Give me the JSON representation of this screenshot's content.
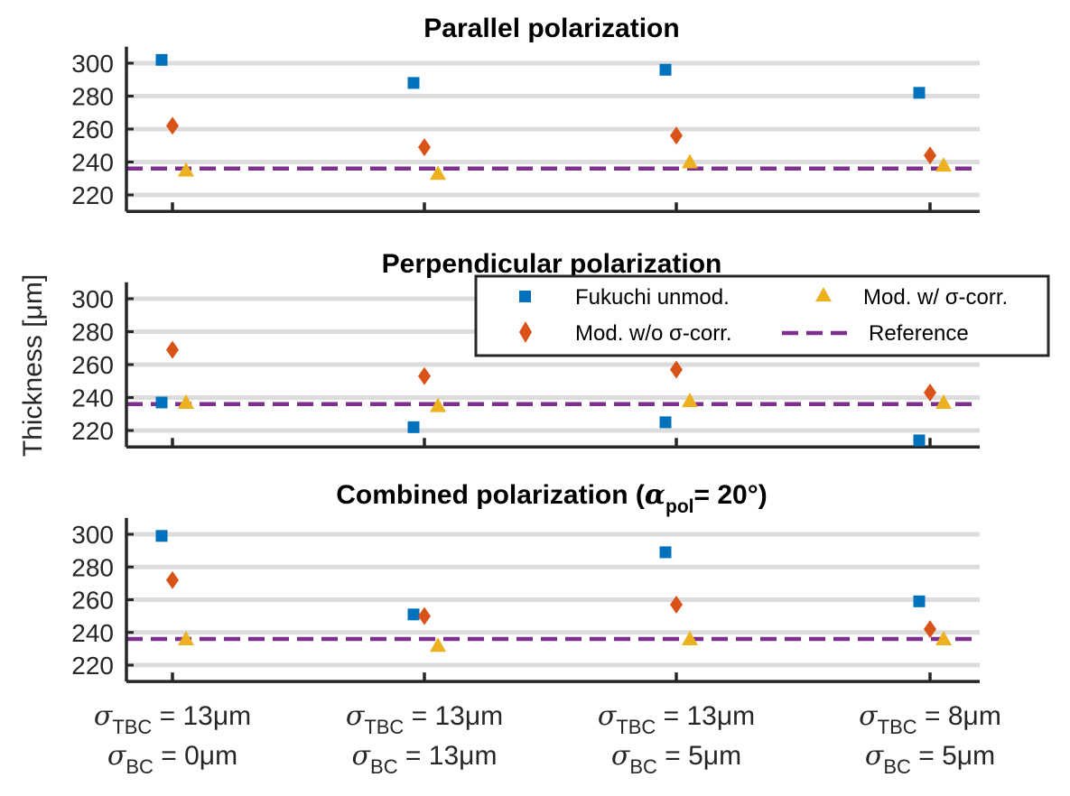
{
  "chart_data": {
    "type": "scatter",
    "ylabel": "Thickness [μm]",
    "ylim": [
      210,
      310
    ],
    "yticks": [
      "220",
      "240",
      "260",
      "280",
      "300"
    ],
    "grid": "horizontal",
    "categories": [
      {
        "tbc": "= 13μm",
        "bc": "=   0μm"
      },
      {
        "tbc": "= 13μm",
        "bc": "= 13μm"
      },
      {
        "tbc": "= 13μm",
        "bc": "=   5μm"
      },
      {
        "tbc": "=  8μm",
        "bc": "=  5μm"
      }
    ],
    "sigma_symbol": "σ",
    "tbc_subscript": "TBC",
    "bc_subscript": "BC",
    "reference_value": 236,
    "legend": {
      "placement": "inside top-right of middle panel",
      "entries": [
        {
          "name": "Fukuchi unmod.",
          "color": "#0072BD",
          "marker": "square"
        },
        {
          "name": "Mod. w/o σ-corr.",
          "color": "#D95319",
          "marker": "diamond"
        },
        {
          "name": "Mod. w/ σ-corr.",
          "color": "#EDB120",
          "marker": "triangle"
        },
        {
          "name": "Reference",
          "color": "#7E2F8E",
          "marker": "dashed-line"
        }
      ]
    },
    "panels": [
      {
        "title": "Parallel polarization",
        "series": [
          {
            "name": "Fukuchi unmod.",
            "values": [
              302,
              288,
              296,
              282
            ]
          },
          {
            "name": "Mod. w/o σ-corr.",
            "values": [
              262,
              249,
              256,
              244
            ]
          },
          {
            "name": "Mod. w/ σ-corr.",
            "values": [
              235,
              233,
              240,
              238
            ]
          }
        ]
      },
      {
        "title": "Perpendicular polarization",
        "series": [
          {
            "name": "Fukuchi unmod.",
            "values": [
              237,
              222,
              225,
              214
            ]
          },
          {
            "name": "Mod. w/o σ-corr.",
            "values": [
              269,
              253,
              257,
              243
            ]
          },
          {
            "name": "Mod. w/ σ-corr.",
            "values": [
              237,
              235,
              238,
              237
            ]
          }
        ]
      },
      {
        "title_prefix": "Combined polarization (",
        "title_alpha": "α",
        "title_sub": "pol",
        "title_suffix": "= 20°)",
        "series": [
          {
            "name": "Fukuchi unmod.",
            "values": [
              299,
              251,
              289,
              259
            ]
          },
          {
            "name": "Mod. w/o σ-corr.",
            "values": [
              272,
              250,
              257,
              242
            ]
          },
          {
            "name": "Mod. w/ σ-corr.",
            "values": [
              236,
              232,
              236,
              236
            ]
          }
        ]
      }
    ]
  }
}
